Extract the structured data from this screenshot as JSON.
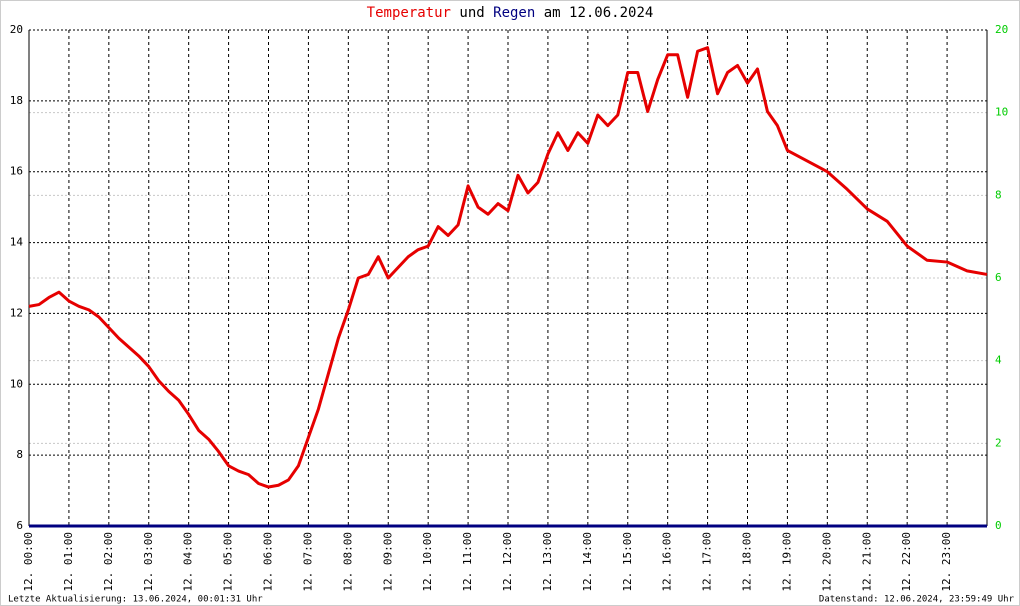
{
  "chart_data": {
    "type": "line",
    "title_parts": [
      "Temperatur",
      "und",
      "Regen",
      "am 12.06.2024"
    ],
    "footer_left": "Letzte Aktualisierung: 13.06.2024, 00:01:31 Uhr",
    "footer_right": "Datenstand: 12.06.2024, 23:59:49 Uhr",
    "xlim": [
      0,
      24
    ],
    "xticks": [
      {
        "value": 0,
        "label": "12. 00:00"
      },
      {
        "value": 1,
        "label": "12. 01:00"
      },
      {
        "value": 2,
        "label": "12. 02:00"
      },
      {
        "value": 3,
        "label": "12. 03:00"
      },
      {
        "value": 4,
        "label": "12. 04:00"
      },
      {
        "value": 5,
        "label": "12. 05:00"
      },
      {
        "value": 6,
        "label": "12. 06:00"
      },
      {
        "value": 7,
        "label": "12. 07:00"
      },
      {
        "value": 8,
        "label": "12. 08:00"
      },
      {
        "value": 9,
        "label": "12. 09:00"
      },
      {
        "value": 10,
        "label": "12. 10:00"
      },
      {
        "value": 11,
        "label": "12. 11:00"
      },
      {
        "value": 12,
        "label": "12. 12:00"
      },
      {
        "value": 13,
        "label": "12. 13:00"
      },
      {
        "value": 14,
        "label": "12. 14:00"
      },
      {
        "value": 15,
        "label": "12. 15:00"
      },
      {
        "value": 16,
        "label": "12. 16:00"
      },
      {
        "value": 17,
        "label": "12. 17:00"
      },
      {
        "value": 18,
        "label": "12. 18:00"
      },
      {
        "value": 19,
        "label": "12. 19:00"
      },
      {
        "value": 20,
        "label": "12. 20:00"
      },
      {
        "value": 21,
        "label": "12. 21:00"
      },
      {
        "value": 22,
        "label": "12. 22:00"
      },
      {
        "value": 23,
        "label": "12. 23:00"
      }
    ],
    "ylim": [
      6,
      20
    ],
    "yticks": [
      6,
      8,
      10,
      12,
      14,
      16,
      18,
      20
    ],
    "y2lim": [
      0,
      12
    ],
    "y2ticks": [
      0,
      2,
      4,
      6,
      8,
      10
    ],
    "y2_top_label": "20",
    "y2_color": "#00cc00",
    "grid": true,
    "series": [
      {
        "color": "#e60000",
        "x": [
          0,
          0.25,
          0.5,
          0.75,
          1,
          1.25,
          1.5,
          1.75,
          2,
          2.25,
          2.5,
          2.75,
          3,
          3.25,
          3.5,
          3.75,
          4,
          4.25,
          4.5,
          4.75,
          5,
          5.25,
          5.5,
          5.75,
          6,
          6.25,
          6.5,
          6.75,
          7,
          7.25,
          7.5,
          7.75,
          8,
          8.25,
          8.5,
          8.75,
          9,
          9.25,
          9.5,
          9.75,
          10,
          10.25,
          10.5,
          10.75,
          11,
          11.25,
          11.5,
          11.75,
          12,
          12.25,
          12.5,
          12.75,
          13,
          13.25,
          13.5,
          13.75,
          14,
          14.25,
          14.5,
          14.75,
          15,
          15.25,
          15.5,
          15.75,
          16,
          16.25,
          16.5,
          16.75,
          17,
          17.25,
          17.5,
          17.75,
          18,
          18.25,
          18.5,
          18.75,
          19,
          19.5,
          20,
          20.5,
          21,
          21.5,
          22,
          22.5,
          23,
          23.5,
          24
        ],
        "values": [
          12.2,
          12.25,
          12.45,
          12.6,
          12.35,
          12.2,
          12.1,
          11.9,
          11.6,
          11.3,
          11.05,
          10.8,
          10.5,
          10.1,
          9.8,
          9.55,
          9.15,
          8.7,
          8.45,
          8.1,
          7.7,
          7.55,
          7.45,
          7.2,
          7.1,
          7.15,
          7.3,
          7.7,
          8.5,
          9.3,
          10.3,
          11.3,
          12.1,
          13.0,
          13.1,
          13.6,
          13.0,
          13.3,
          13.6,
          13.8,
          13.9,
          14.45,
          14.2,
          14.5,
          15.6,
          15.0,
          14.8,
          15.1,
          14.9,
          15.9,
          15.4,
          15.7,
          16.5,
          17.1,
          16.6,
          17.1,
          16.8,
          17.6,
          17.3,
          17.6,
          18.8,
          18.8,
          17.7,
          18.6,
          19.3,
          19.3,
          18.1,
          19.4,
          19.5,
          18.2,
          18.8,
          19.0,
          18.5,
          18.9,
          17.7,
          17.3,
          16.6,
          16.3,
          16.0,
          15.5,
          14.95,
          14.6,
          13.9,
          13.5,
          13.45,
          13.2,
          13.1
        ]
      },
      {
        "color": "#000080",
        "axis": "y2",
        "x": [
          0,
          24
        ],
        "values": [
          0,
          0
        ]
      }
    ]
  }
}
